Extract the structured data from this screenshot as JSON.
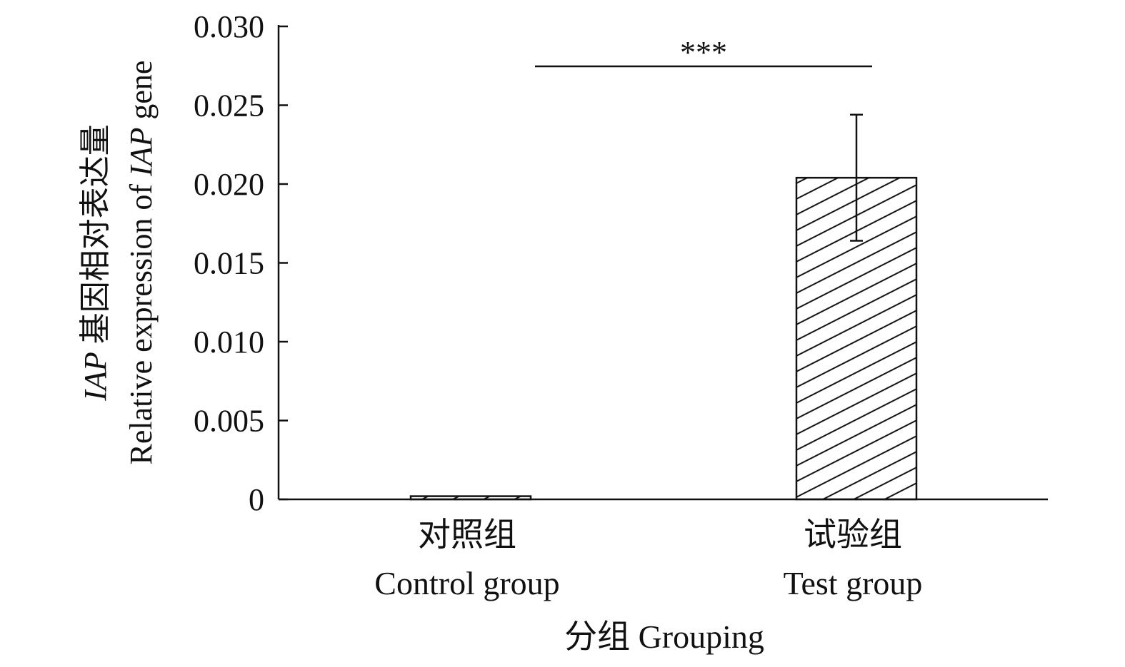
{
  "chart_data": {
    "type": "bar",
    "categories": [
      "对照组",
      "试验组"
    ],
    "categories_en": [
      "Control group",
      "Test group"
    ],
    "values": [
      0.0002,
      0.0204
    ],
    "error": [
      0,
      0.004
    ],
    "xlabel": "分组 Grouping",
    "ylabel_cn_italic": "IAP",
    "ylabel_cn": " 基因相对表达量",
    "ylabel_en_prefix": "Relative expression of ",
    "ylabel_en_italic": "IAP",
    "ylabel_en_suffix": " gene",
    "ylim": [
      0,
      0.03
    ],
    "yticks": [
      0,
      0.005,
      0.01,
      0.015,
      0.02,
      0.025,
      0.03
    ],
    "ytick_labels": [
      "0",
      "0.005",
      "0.010",
      "0.015",
      "0.020",
      "0.025",
      "0.030"
    ],
    "significance": {
      "between": [
        0,
        1
      ],
      "label": "***"
    },
    "grid": false,
    "colors": {
      "bar_fill": "#ffffff",
      "stroke": "#111111"
    }
  }
}
